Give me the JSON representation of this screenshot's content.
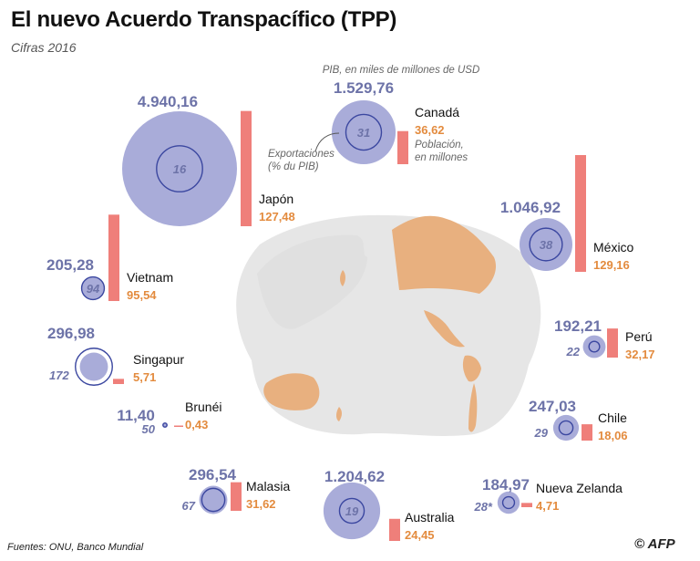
{
  "title": "El nuevo Acuerdo Transpacífico (TPP)",
  "subtitle": "Cifras 2016",
  "source": "Fuentes: ONU, Banco Mundial",
  "logo": "© AFP",
  "colors": {
    "gdp": "#a9acd9",
    "gdp_ring": "#3b47a0",
    "pop_bar": "#ef7f7a",
    "pop_text": "#e38b3e",
    "gdp_text": "#6d73a8",
    "map_land": "#e6e6e6",
    "map_tpp": "#e8b07f"
  },
  "legend": {
    "gdp_note": "PIB, en miles de millones de USD",
    "exports_note_1": "Exportaciones",
    "exports_note_2": "(% du PIB)",
    "pop_note_1": "Población,",
    "pop_note_2": "en millones"
  },
  "chart_data": {
    "type": "bubble",
    "title": "El nuevo Acuerdo Transpacífico (TPP)",
    "subtitle": "Cifras 2016",
    "series": [
      {
        "name": "PIB, en miles de millones de USD",
        "key": "gdp"
      },
      {
        "name": "Exportaciones (% du PIB)",
        "key": "exports"
      },
      {
        "name": "Población, en millones",
        "key": "population"
      }
    ],
    "countries": [
      {
        "name": "Japón",
        "gdp_label": "4.940,16",
        "gdp": 4940.16,
        "exports": 16,
        "exports_label": "16",
        "population": 127.48,
        "population_label": "127,48"
      },
      {
        "name": "Canadá",
        "gdp_label": "1.529,76",
        "gdp": 1529.76,
        "exports": 31,
        "exports_label": "31",
        "population": 36.62,
        "population_label": "36,62"
      },
      {
        "name": "México",
        "gdp_label": "1.046,92",
        "gdp": 1046.92,
        "exports": 38,
        "exports_label": "38",
        "population": 129.16,
        "population_label": "129,16"
      },
      {
        "name": "Vietnam",
        "gdp_label": "205,28",
        "gdp": 205.28,
        "exports": 94,
        "exports_label": "94",
        "population": 95.54,
        "population_label": "95,54"
      },
      {
        "name": "Singapur",
        "gdp_label": "296,98",
        "gdp": 296.98,
        "exports": 172,
        "exports_label": "172",
        "population": 5.71,
        "population_label": "5,71"
      },
      {
        "name": "Perú",
        "gdp_label": "192,21",
        "gdp": 192.21,
        "exports": 22,
        "exports_label": "22",
        "population": 32.17,
        "population_label": "32,17"
      },
      {
        "name": "Brunéi",
        "gdp_label": "11,40",
        "gdp": 11.4,
        "exports": 50,
        "exports_label": "50",
        "population": 0.43,
        "population_label": "0,43"
      },
      {
        "name": "Chile",
        "gdp_label": "247,03",
        "gdp": 247.03,
        "exports": 29,
        "exports_label": "29",
        "population": 18.06,
        "population_label": "18,06"
      },
      {
        "name": "Malasia",
        "gdp_label": "296,54",
        "gdp": 296.54,
        "exports": 67,
        "exports_label": "67",
        "population": 31.62,
        "population_label": "31,62"
      },
      {
        "name": "Australia",
        "gdp_label": "1.204,62",
        "gdp": 1204.62,
        "exports": 19,
        "exports_label": "19",
        "population": 24.45,
        "population_label": "24,45"
      },
      {
        "name": "Nueva Zelanda",
        "gdp_label": "184,97",
        "gdp": 184.97,
        "exports": 28,
        "exports_label": "28*",
        "population": 4.71,
        "population_label": "4,71"
      }
    ]
  }
}
